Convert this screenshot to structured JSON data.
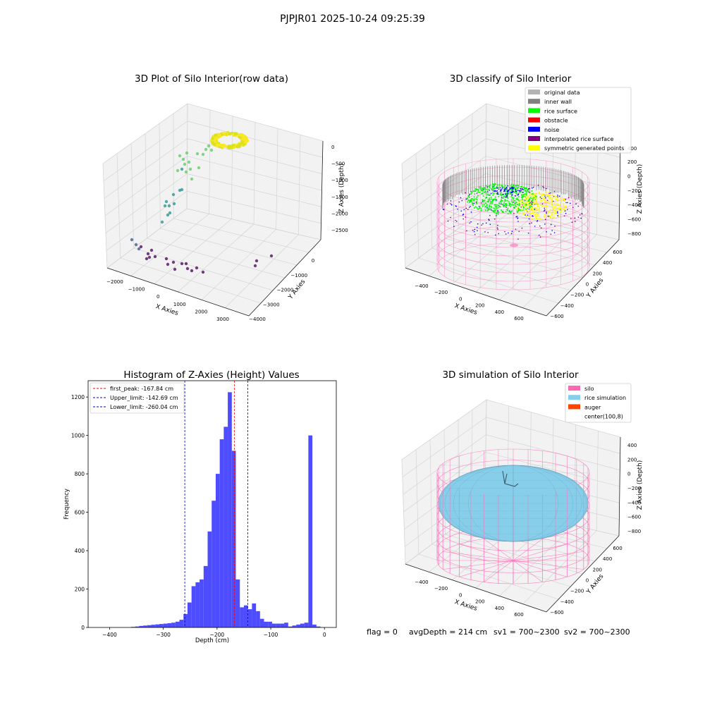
{
  "figure": {
    "suptitle": "PJPJR01 2025-10-24 09:25:39",
    "footer": {
      "flag": "flag = 0",
      "avg_depth": "avgDepth = 214 cm",
      "sv1": "sv1 = 700~2300",
      "sv2": "sv2 = 700~2300"
    }
  },
  "colors": {
    "hist_bar": "#4d4dff",
    "first_peak": "#ff0000",
    "limits": "#0000cc",
    "pane": "#f2f2f2",
    "grid": "#d0d0d0",
    "silo": "#ff69b4",
    "rice_simulation": "#87ceeb",
    "auger": "#ff4500",
    "inner_wall": "#808080",
    "rice_surface": "#00ff00",
    "obstacle": "#ff0000",
    "noise": "#0000ff",
    "interpolated": "#800080",
    "symmetric": "#ffff00",
    "original": "#b3b3b3"
  },
  "chart_data": [
    {
      "type": "scatter",
      "title": "3D Plot of Silo Interior(row data)",
      "xlabel": "X Axies",
      "ylabel": "Y Axies",
      "zlabel": "Z Axies (Depth)",
      "x_ticks": [
        "−2000",
        "−1000",
        "0",
        "1000",
        "2000",
        "3000"
      ],
      "y_ticks": [
        "0",
        "−1000",
        "−2000",
        "−3000",
        "−4000"
      ],
      "z_ticks": [
        "0",
        "−500",
        "−1000",
        "−1500",
        "−2000",
        "−2500"
      ],
      "colormap": [
        "#440154",
        "#3b528b",
        "#21918c",
        "#5ec962",
        "#fde725"
      ]
    },
    {
      "type": "scatter",
      "title": "3D classify of Silo Interior",
      "xlabel": "X Axies",
      "ylabel": "Y Axies",
      "zlabel": "Z Axies (Depth)",
      "x_ticks": [
        "−400",
        "−200",
        "0",
        "200",
        "400",
        "600"
      ],
      "y_ticks": [
        "600",
        "400",
        "200",
        "0",
        "−200",
        "−400",
        "−600"
      ],
      "z_ticks": [
        "200",
        "0",
        "−200",
        "−400",
        "−600",
        "−800"
      ],
      "z_top_tick": "400",
      "legend": [
        {
          "label": "original data",
          "color": "#b3b3b3"
        },
        {
          "label": "inner wall",
          "color": "#808080"
        },
        {
          "label": "rice surface",
          "color": "#00ff00"
        },
        {
          "label": "obstacle",
          "color": "#ff0000"
        },
        {
          "label": "noise",
          "color": "#0000ff"
        },
        {
          "label": "interpolated rice surface",
          "color": "#800080"
        },
        {
          "label": "symmetric generated points",
          "color": "#ffff00"
        }
      ]
    },
    {
      "type": "bar",
      "title": "Histogram of Z-Axies (Height) Values",
      "xlabel": "Depth (cm)",
      "ylabel": "Frequency",
      "xlim": [
        -440,
        22
      ],
      "ylim": [
        0,
        1285
      ],
      "x_ticks": [
        -400,
        -300,
        -200,
        -100,
        0
      ],
      "x_tick_labels": [
        "−400",
        "−300",
        "−200",
        "−100",
        "0"
      ],
      "y_ticks": [
        0,
        200,
        400,
        600,
        800,
        1000,
        1200
      ],
      "bin_width": 7.5,
      "bin_starts": [
        -360,
        -352.5,
        -345,
        -337.5,
        -330,
        -322.5,
        -315,
        -307.5,
        -300,
        -292.5,
        -285,
        -277.5,
        -270,
        -262.5,
        -255,
        -247.5,
        -240,
        -232.5,
        -225,
        -217.5,
        -210,
        -202.5,
        -195,
        -187.5,
        -180,
        -172.5,
        -165,
        -157.5,
        -150,
        -142.5,
        -135,
        -127.5,
        -120,
        -112.5,
        -105,
        -97.5,
        -90,
        -82.5,
        -75,
        -67.5,
        -60,
        -52.5,
        -45,
        -37.5,
        -30,
        -22.5,
        -15,
        -7.5
      ],
      "values": [
        3,
        5,
        8,
        10,
        12,
        14,
        16,
        18,
        20,
        22,
        25,
        30,
        40,
        70,
        130,
        215,
        235,
        250,
        320,
        500,
        660,
        800,
        980,
        1045,
        1225,
        920,
        250,
        105,
        115,
        95,
        125,
        85,
        45,
        30,
        30,
        20,
        20,
        20,
        25,
        5,
        10,
        15,
        20,
        25,
        1000,
        15,
        5,
        0
      ],
      "lines": [
        {
          "name": "first_peak: -167.84 cm",
          "value": -167.84,
          "color": "#ff0000"
        },
        {
          "name": "Upper_limit: -142.69 cm",
          "value": -142.69,
          "color": "#0000cc"
        },
        {
          "name": "Lower_limit: -260.04 cm",
          "value": -260.04,
          "color": "#0000cc"
        }
      ]
    },
    {
      "type": "scatter",
      "title": "3D simulation of Silo Interior",
      "xlabel": "X Axies",
      "ylabel": "Y Axies",
      "zlabel": "Z Axies (Depth)",
      "x_ticks": [
        "−400",
        "−200",
        "0",
        "200",
        "400",
        "600"
      ],
      "y_ticks": [
        "600",
        "400",
        "200",
        "0",
        "−200",
        "−400",
        "−600"
      ],
      "z_ticks": [
        "400",
        "200",
        "0",
        "−200",
        "−400",
        "−600",
        "−800"
      ],
      "legend": [
        {
          "label": "silo",
          "color": "#ff69b4"
        },
        {
          "label": "rice simulation",
          "color": "#87ceeb"
        },
        {
          "label": "auger",
          "color": "#ff4500"
        },
        {
          "label": "center(100,8)",
          "color": ""
        }
      ]
    }
  ]
}
